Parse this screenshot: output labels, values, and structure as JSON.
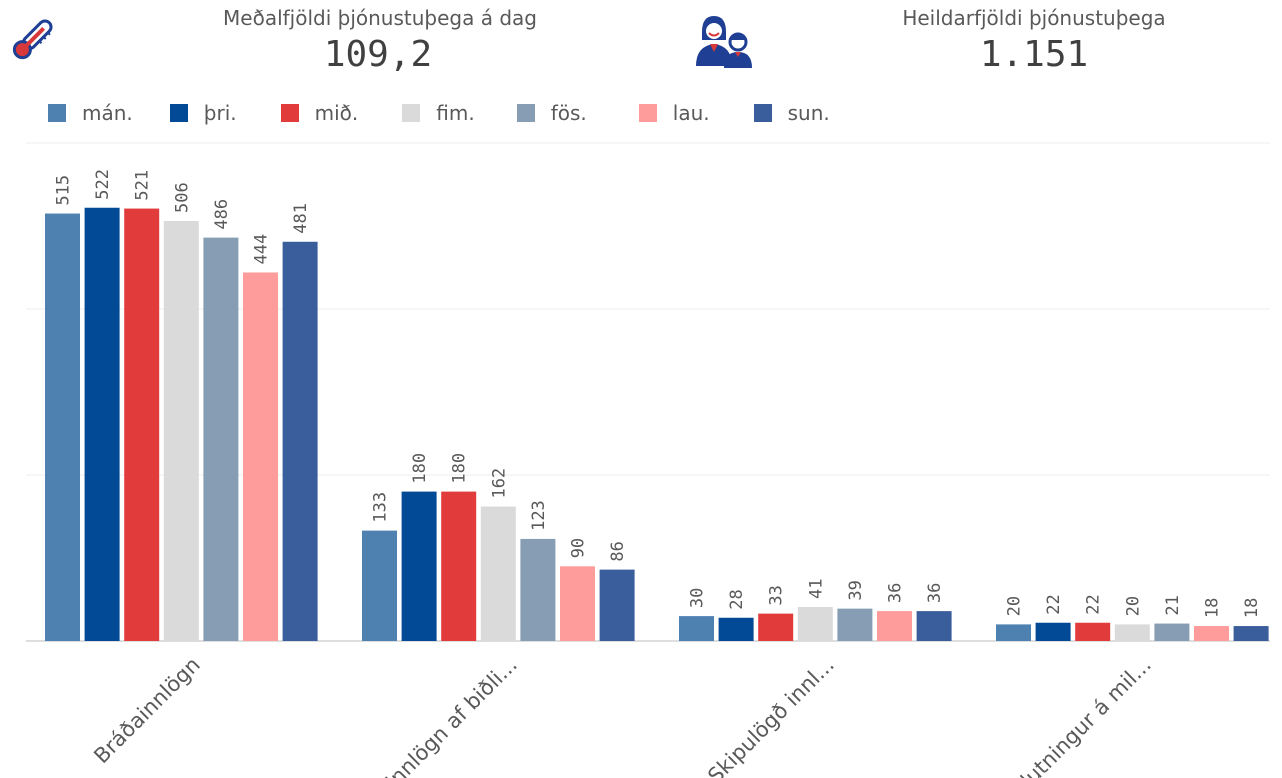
{
  "kpis": {
    "avg": {
      "label": "Meðalfjöldi þjónustuþega á dag",
      "value": "109,2",
      "icon": "thermometer-icon"
    },
    "total": {
      "label": "Heildarfjöldi þjónustuþega",
      "value": "1.151",
      "icon": "people-icon"
    }
  },
  "colors": {
    "icon_blue": "#1f3f94",
    "icon_red": "#d9383a"
  },
  "chart_data": {
    "type": "bar",
    "categories": [
      "Bráðainnlögn",
      "Innlögn af biðli...",
      "Skipulögð innl...",
      "Flutningur á mil..."
    ],
    "series": [
      {
        "name": "mán.",
        "color": "#4e80b0",
        "values": [
          515,
          133,
          30,
          20
        ]
      },
      {
        "name": "þri.",
        "color": "#034a96",
        "values": [
          522,
          180,
          28,
          22
        ]
      },
      {
        "name": "mið.",
        "color": "#e13b3c",
        "values": [
          521,
          180,
          33,
          22
        ]
      },
      {
        "name": "fim.",
        "color": "#dadada",
        "values": [
          506,
          162,
          41,
          20
        ]
      },
      {
        "name": "fös.",
        "color": "#879db4",
        "values": [
          486,
          123,
          39,
          21
        ]
      },
      {
        "name": "lau.",
        "color": "#fe9b9b",
        "values": [
          444,
          90,
          36,
          18
        ]
      },
      {
        "name": "sun.",
        "color": "#3a5d9c",
        "values": [
          481,
          86,
          36,
          18
        ]
      }
    ],
    "ylim": [
      0,
      600
    ],
    "grid": true,
    "legend": "top-left",
    "data_labels": true
  }
}
